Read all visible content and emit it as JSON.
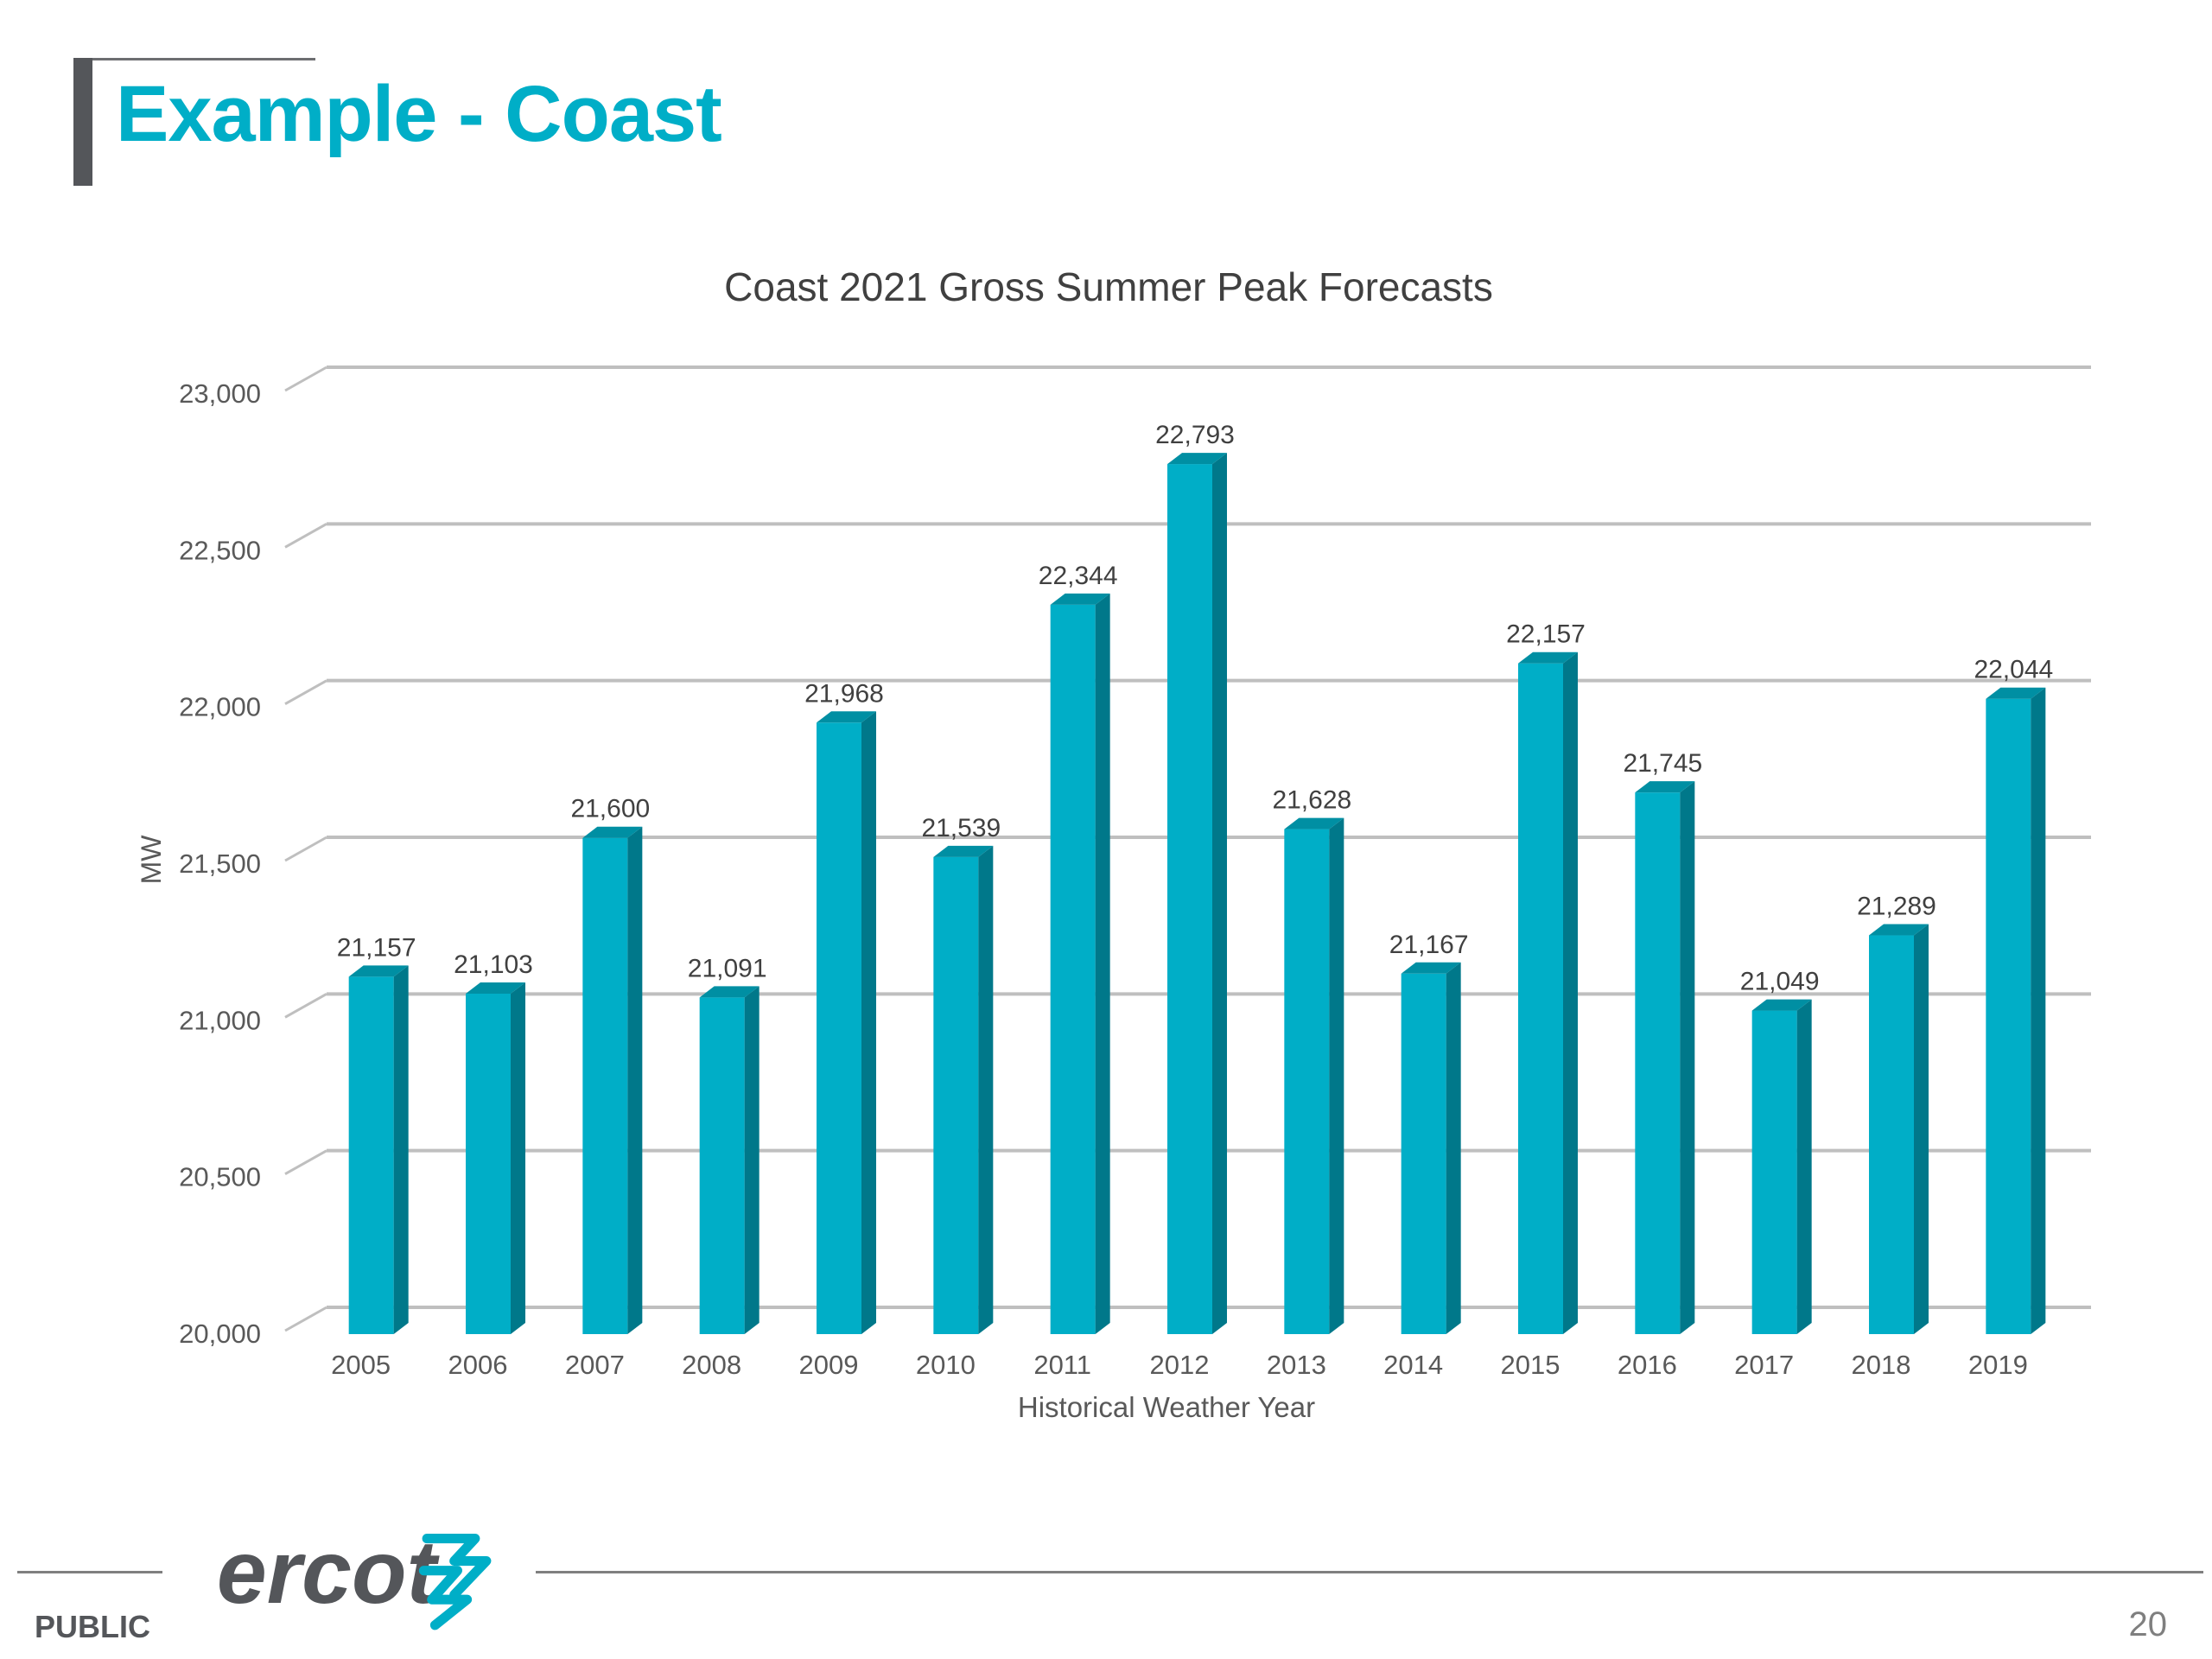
{
  "slide": {
    "title": "Example - Coast",
    "footer_label": "PUBLIC",
    "page_number": "20",
    "logo_text": "ercot",
    "colors": {
      "accent": "#00aec7",
      "dark_gray": "#54565a"
    }
  },
  "chart_data": {
    "type": "bar",
    "title": "Coast 2021 Gross Summer Peak Forecasts",
    "xlabel": "Historical Weather Year",
    "ylabel": "MW",
    "ylim": [
      20000,
      23000
    ],
    "yticks": [
      20000,
      20500,
      21000,
      21500,
      22000,
      22500,
      23000
    ],
    "ytick_labels": [
      "20,000",
      "20,500",
      "21,000",
      "21,500",
      "22,000",
      "22,500",
      "23,000"
    ],
    "grid": true,
    "style": "3d-column",
    "bar_color": "#00aec7",
    "categories": [
      "2005",
      "2006",
      "2007",
      "2008",
      "2009",
      "2010",
      "2011",
      "2012",
      "2013",
      "2014",
      "2015",
      "2016",
      "2017",
      "2018",
      "2019"
    ],
    "values": [
      21157,
      21103,
      21600,
      21091,
      21968,
      21539,
      22344,
      22793,
      21628,
      21167,
      22157,
      21745,
      21049,
      21289,
      22044
    ],
    "data_labels": [
      "21,157",
      "21,103",
      "21,600",
      "21,091",
      "21,968",
      "21,539",
      "22,344",
      "22,793",
      "21,628",
      "21,167",
      "22,157",
      "21,745",
      "21,049",
      "21,289",
      "22,044"
    ]
  }
}
